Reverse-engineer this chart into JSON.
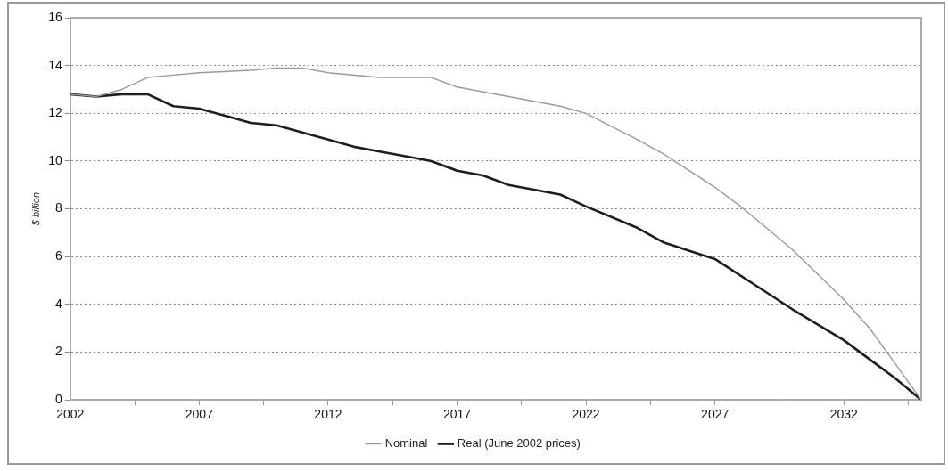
{
  "chart_data": {
    "type": "line",
    "ylabel": "$ billion",
    "xlim": [
      2002,
      2035
    ],
    "xticks": [
      2002,
      {
        "value": 2004.5,
        "label": null
      },
      2007,
      {
        "value": 2009.5,
        "label": null
      },
      2012,
      {
        "value": 2014.5,
        "label": null
      },
      2017,
      {
        "value": 2019.5,
        "label": null
      },
      2022,
      {
        "value": 2024.5,
        "label": null
      },
      2027,
      {
        "value": 2029.5,
        "label": null
      },
      2032,
      {
        "value": 2034.5,
        "label": null
      }
    ],
    "ylim": [
      0,
      16
    ],
    "yticks": [
      0,
      2,
      4,
      6,
      8,
      10,
      12,
      14,
      16
    ],
    "grid": "y",
    "legend": "bottom",
    "marker": "none",
    "line_style": "solid",
    "series": [
      {
        "name": "Nominal",
        "color": "#9a9a9a",
        "x": [
          2002,
          2003,
          2004,
          2005,
          2006,
          2007,
          2009,
          2010,
          2011,
          2012,
          2014,
          2016,
          2017,
          2019,
          2021,
          2022,
          2024,
          2025,
          2027,
          2028,
          2029,
          2030,
          2032,
          2033,
          2034,
          2035
        ],
        "values": [
          12.8,
          12.7,
          13.0,
          13.5,
          13.6,
          13.7,
          13.8,
          13.9,
          13.9,
          13.7,
          13.5,
          13.5,
          13.1,
          12.7,
          12.3,
          12.0,
          10.9,
          10.3,
          8.9,
          8.1,
          7.2,
          6.3,
          4.2,
          3.0,
          1.5,
          0
        ]
      },
      {
        "name": "Real (June 2002 prices)",
        "color": "#1e1e1e",
        "x": [
          2002,
          2003,
          2004,
          2005,
          2006,
          2007,
          2008,
          2009,
          2010,
          2011,
          2012,
          2013,
          2014,
          2015,
          2016,
          2017,
          2018,
          2019,
          2021,
          2022,
          2024,
          2025,
          2027,
          2029,
          2030,
          2032,
          2033,
          2034,
          2035
        ],
        "values": [
          12.8,
          12.7,
          12.8,
          12.8,
          12.3,
          12.2,
          11.9,
          11.6,
          11.5,
          11.2,
          10.9,
          10.6,
          10.4,
          10.2,
          10.0,
          9.6,
          9.4,
          9.0,
          8.6,
          8.1,
          7.2,
          6.6,
          5.9,
          4.5,
          3.8,
          2.5,
          1.7,
          0.9,
          0
        ]
      }
    ]
  }
}
